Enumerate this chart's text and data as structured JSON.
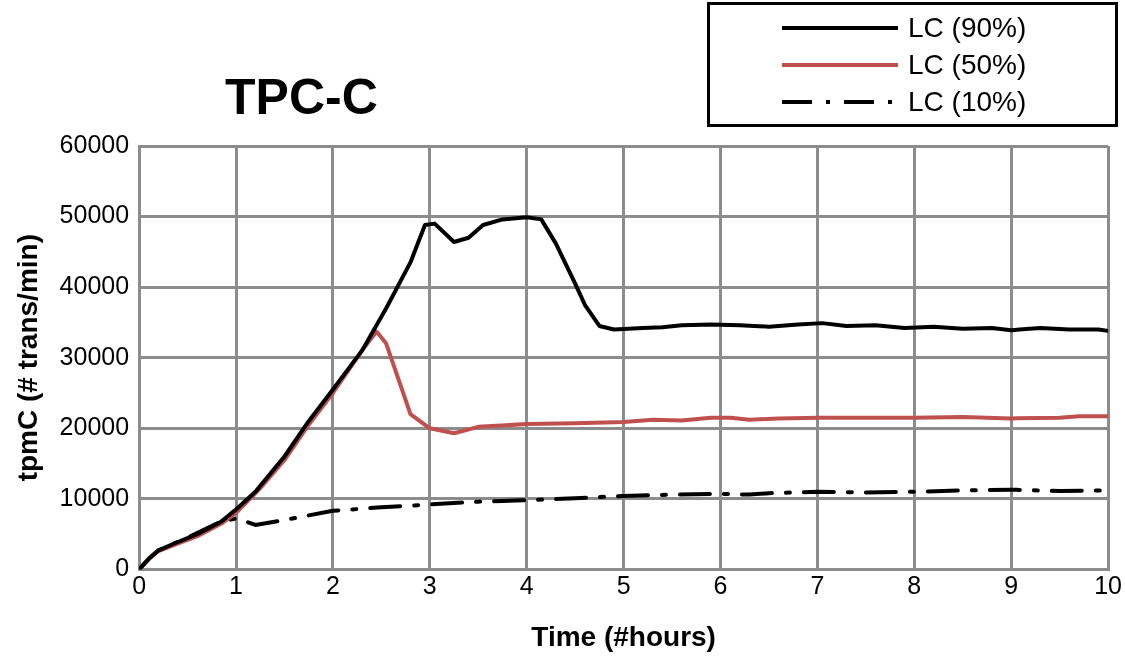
{
  "chart_data": {
    "type": "line",
    "title": "TPC-C",
    "xlabel": "Time (#hours)",
    "ylabel": "tpmC (# trans/min)",
    "xlim": [
      0,
      10
    ],
    "xticks": [
      0,
      1,
      2,
      3,
      4,
      5,
      6,
      7,
      8,
      9,
      10
    ],
    "ylim": [
      0,
      60000
    ],
    "yticks": [
      0,
      10000,
      20000,
      30000,
      40000,
      50000,
      60000
    ],
    "grid": true,
    "legend": "top right",
    "marker": "none",
    "series": [
      {
        "name": "LC (90%)",
        "color": "#000000",
        "line_style": "solid",
        "x": [
          0,
          0.1,
          0.2,
          0.35,
          0.6,
          0.85,
          1,
          1.2,
          1.5,
          1.75,
          2,
          2.3,
          2.55,
          2.8,
          2.95,
          3.05,
          3.25,
          3.4,
          3.55,
          3.75,
          4,
          4.15,
          4.3,
          4.5,
          4.6,
          4.75,
          4.9,
          5.2,
          5.4,
          5.6,
          5.9,
          6.2,
          6.5,
          6.8,
          7.05,
          7.3,
          7.6,
          7.9,
          8.2,
          8.5,
          8.8,
          9,
          9.3,
          9.6,
          9.9,
          10
        ],
        "values": [
          0,
          1500,
          2700,
          3600,
          5000,
          6800,
          8500,
          11000,
          16000,
          21000,
          25500,
          31000,
          37000,
          43500,
          48800,
          49000,
          46400,
          47000,
          48800,
          49600,
          49900,
          49600,
          46200,
          40500,
          37500,
          34500,
          34000,
          34200,
          34300,
          34600,
          34700,
          34600,
          34400,
          34700,
          34900,
          34500,
          34600,
          34200,
          34400,
          34100,
          34200,
          33900,
          34200,
          34000,
          34000,
          33800
        ]
      },
      {
        "name": "LC (50%)",
        "color": "#c0504d",
        "line_style": "solid",
        "x": [
          0,
          0.1,
          0.2,
          0.35,
          0.6,
          0.85,
          1,
          1.25,
          1.5,
          1.75,
          2,
          2.3,
          2.45,
          2.55,
          2.7,
          2.8,
          3,
          3.25,
          3.5,
          4,
          4.5,
          5,
          5.3,
          5.6,
          5.9,
          6.1,
          6.3,
          6.6,
          7,
          7.5,
          8,
          8.5,
          9,
          9.5,
          9.7,
          10
        ],
        "values": [
          0,
          1500,
          2600,
          3400,
          4700,
          6500,
          8000,
          11500,
          15500,
          20500,
          25000,
          31000,
          33700,
          32000,
          26000,
          22000,
          20000,
          19300,
          20200,
          20600,
          20700,
          20900,
          21200,
          21100,
          21500,
          21500,
          21200,
          21400,
          21500,
          21500,
          21500,
          21600,
          21400,
          21500,
          21700,
          21700
        ]
      },
      {
        "name": "LC (10%)",
        "color": "#000000",
        "line_style": "dashdot",
        "x": [
          0,
          0.1,
          0.2,
          0.5,
          0.85,
          1,
          1.1,
          1.2,
          1.5,
          2,
          2.5,
          3,
          3.5,
          4,
          4.5,
          5,
          5.5,
          6,
          6.3,
          6.5,
          7,
          7.5,
          8,
          8.5,
          9,
          9.5,
          10
        ],
        "values": [
          0,
          1500,
          2700,
          4500,
          6800,
          7200,
          6800,
          6300,
          7000,
          8300,
          8800,
          9200,
          9600,
          9800,
          10100,
          10400,
          10600,
          10700,
          10600,
          10800,
          11000,
          10900,
          11000,
          11200,
          11300,
          11100,
          11200
        ]
      }
    ]
  }
}
